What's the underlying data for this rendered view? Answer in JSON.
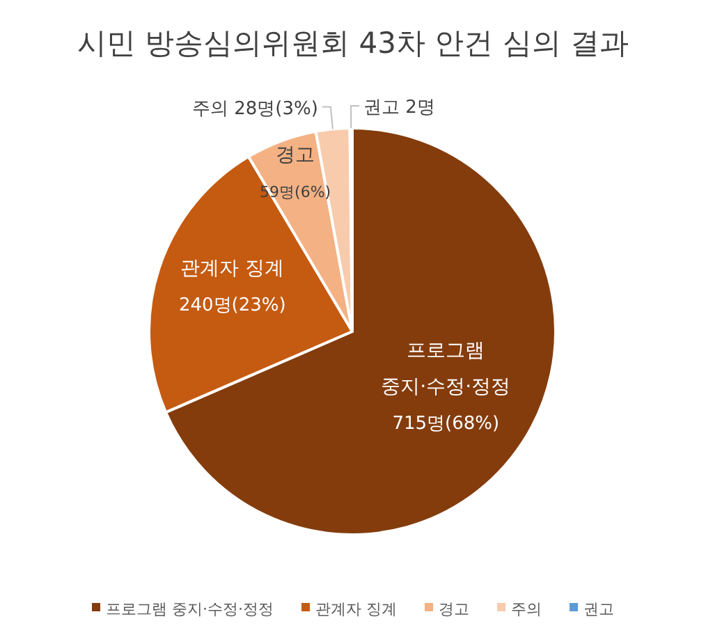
{
  "chart_data": {
    "type": "pie",
    "title": "시민 방송심의위원회 43차 안건 심의 결과",
    "categories": [
      "프로그램 중지·수정·정정",
      "관계자 징계",
      "경고",
      "주의",
      "권고"
    ],
    "values": [
      715,
      240,
      59,
      28,
      2
    ],
    "colors": [
      "#843c0c",
      "#c55a11",
      "#f4b183",
      "#f8cbad",
      "#5b9bd5"
    ],
    "value_labels": [
      "715명(68%)",
      "240명(23%)",
      "59명(6%)",
      "28명(3%)",
      "2명"
    ],
    "legend": "bottom"
  }
}
